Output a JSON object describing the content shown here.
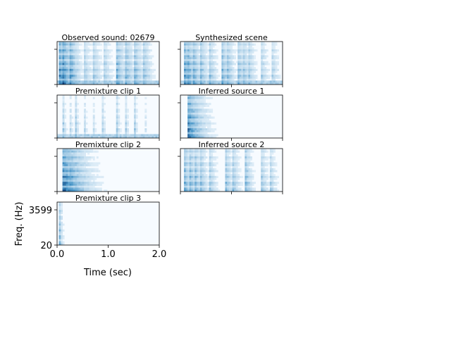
{
  "chart_data": {
    "type": "heatmap",
    "colormap": "Blues",
    "colors": {
      "low": "#f7fbff",
      "high": "#08306b"
    },
    "xlabel": "Time (sec)",
    "ylabel": "Freq. (Hz)",
    "xlim": [
      0.0,
      2.0
    ],
    "xticks": [
      "0.0",
      "1.0",
      "2.0"
    ],
    "ylim": [
      20,
      8000
    ],
    "yticks": [
      "20",
      "3599"
    ],
    "panels": [
      {
        "title": "Observed sound: 02679",
        "column": "left",
        "onsets": [
          0.03,
          0.1,
          0.22,
          0.5,
          0.67,
          0.88,
          1.15,
          1.32,
          1.5,
          1.67
        ],
        "strength": [
          0.85,
          0.95,
          0.9,
          0.45,
          0.5,
          0.45,
          0.65,
          0.6,
          0.55,
          0.5
        ],
        "duration": 0.35,
        "base_band": 0.72,
        "floor": true
      },
      {
        "title": "Synthesized scene",
        "column": "right",
        "onsets": [
          0.05,
          0.12,
          0.22,
          0.38,
          0.55,
          0.8,
          0.9,
          1.1,
          1.2,
          1.3,
          1.55,
          1.75
        ],
        "strength": [
          0.85,
          0.8,
          0.75,
          0.55,
          0.5,
          0.6,
          0.55,
          0.6,
          0.55,
          0.5,
          0.45,
          0.45
        ],
        "duration": 0.3,
        "base_band": 0.72,
        "floor": true
      },
      {
        "title": "Premixture clip 1",
        "column": "left",
        "onsets": [
          0.1,
          0.23,
          0.35,
          0.5,
          0.67,
          0.87,
          1.15,
          1.32,
          1.5,
          1.68
        ],
        "strength": [
          0.45,
          0.4,
          0.45,
          0.5,
          0.45,
          0.4,
          0.5,
          0.45,
          0.45,
          0.4
        ],
        "duration": 0.12,
        "base_band": 0.2,
        "floor": true
      },
      {
        "title": "Inferred source 1",
        "column": "right",
        "onsets": [
          0.12
        ],
        "strength": [
          0.95
        ],
        "duration": 0.6,
        "base_band": 0.72,
        "floor": false
      },
      {
        "title": "Premixture clip 2",
        "column": "left",
        "onsets": [
          0.08,
          0.14,
          0.22
        ],
        "strength": [
          0.95,
          0.85,
          0.75
        ],
        "duration": 0.8,
        "base_band": 0.72,
        "floor": false
      },
      {
        "title": "Inferred source 2",
        "column": "right",
        "onsets": [
          0.05,
          0.15,
          0.25,
          0.38,
          0.55,
          0.85,
          1.0,
          1.25,
          1.55,
          1.72
        ],
        "strength": [
          0.7,
          0.7,
          0.65,
          0.5,
          0.45,
          0.6,
          0.5,
          0.55,
          0.5,
          0.45
        ],
        "duration": 0.28,
        "base_band": 0.72,
        "floor": false
      },
      {
        "title": "Premixture clip 3",
        "column": "left",
        "onsets": [
          0.03
        ],
        "strength": [
          0.55
        ],
        "duration": 0.12,
        "base_band": 0.8,
        "floor": false
      }
    ]
  }
}
